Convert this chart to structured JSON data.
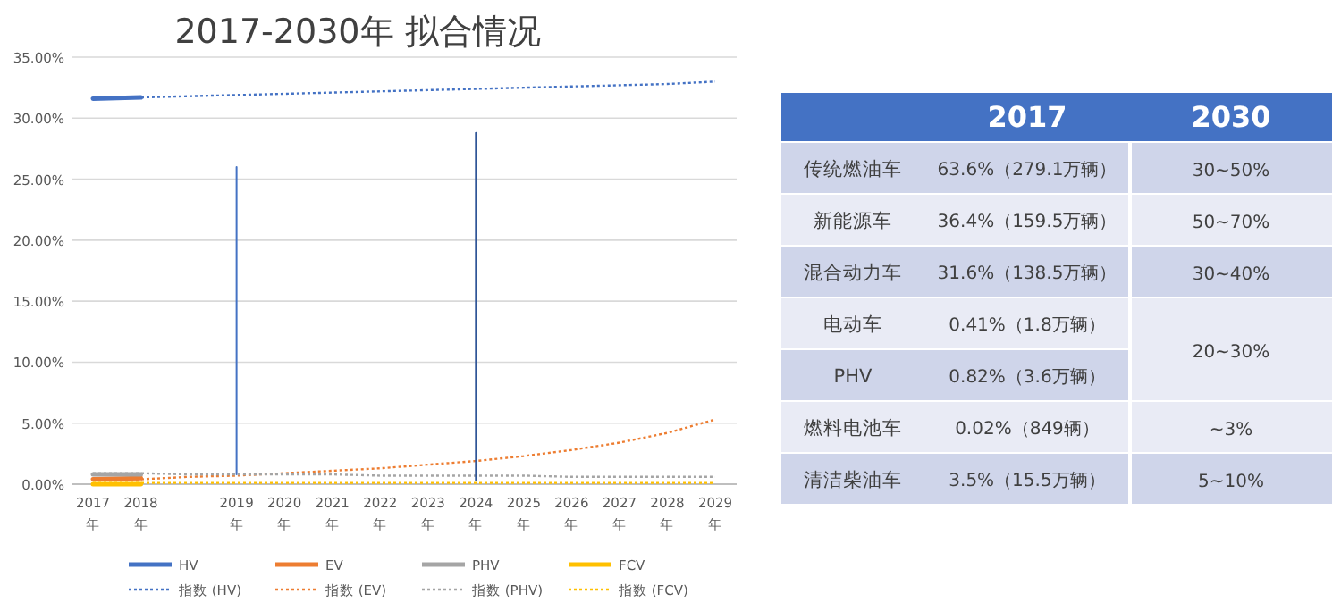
{
  "chart_data": [
    {
      "type": "line",
      "title": "2017-2030年 拟合情况",
      "categories": [
        "2017年",
        "2018年",
        null,
        "2019年",
        "2020年",
        "2021年",
        "2022年",
        "2023年",
        "2024年",
        "2025年",
        "2026年",
        "2027年",
        "2028年",
        "2029年"
      ],
      "ylim": [
        0,
        35
      ],
      "yticks": [
        {
          "value": 0,
          "label": "0.00%"
        },
        {
          "value": 5,
          "label": "5.00%"
        },
        {
          "value": 10,
          "label": "10.00%"
        },
        {
          "value": 15,
          "label": "15.00%"
        },
        {
          "value": 20,
          "label": "20.00%"
        },
        {
          "value": 25,
          "label": "25.00%"
        },
        {
          "value": 30,
          "label": "30.00%"
        },
        {
          "value": 35,
          "label": "35.00%"
        }
      ],
      "grid": "y",
      "legend": "bottom",
      "marker": "none",
      "series": [
        {
          "name": "HV",
          "color": "#4472c4",
          "values": [
            31.6,
            31.7,
            null,
            null,
            null,
            null,
            null,
            null,
            null,
            null,
            null,
            null,
            null,
            null
          ]
        },
        {
          "name": "EV",
          "color": "#ed7d31",
          "values": [
            0.4,
            0.5,
            null,
            null,
            null,
            null,
            null,
            null,
            null,
            null,
            null,
            null,
            null,
            null
          ]
        },
        {
          "name": "PHV",
          "color": "#a5a5a5",
          "values": [
            0.8,
            0.8,
            null,
            null,
            null,
            null,
            null,
            null,
            null,
            null,
            null,
            null,
            null,
            null
          ]
        },
        {
          "name": "FCV",
          "color": "#ffc000",
          "values": [
            0,
            0,
            null,
            null,
            null,
            null,
            null,
            null,
            null,
            null,
            null,
            null,
            null,
            null
          ]
        },
        {
          "name": "指数 (HV)",
          "color": "#4472c4",
          "line_style": "dotted",
          "values": [
            31.6,
            31.7,
            31.8,
            31.9,
            32.0,
            32.1,
            32.2,
            32.3,
            32.4,
            32.5,
            32.6,
            32.7,
            32.8,
            33.0
          ]
        },
        {
          "name": "指数 (EV)",
          "color": "#ed7d31",
          "line_style": "dotted",
          "values": [
            0.3,
            0.4,
            0.6,
            0.7,
            0.9,
            1.1,
            1.3,
            1.6,
            1.9,
            2.3,
            2.8,
            3.4,
            4.2,
            5.3
          ]
        },
        {
          "name": "指数 (PHV)",
          "color": "#a5a5a5",
          "line_style": "dotted",
          "values": [
            0.9,
            0.9,
            0.8,
            0.8,
            0.8,
            0.8,
            0.7,
            0.7,
            0.7,
            0.7,
            0.6,
            0.6,
            0.6,
            0.6
          ]
        },
        {
          "name": "指数 (FCV)",
          "color": "#ffc000",
          "line_style": "dotted",
          "values": [
            0.1,
            0.1,
            0.1,
            0.1,
            0.1,
            0.1,
            0.1,
            0.1,
            0.1,
            0.1,
            0.1,
            0.1,
            0.1,
            0.1
          ]
        },
        {
          "color": "#4472c4",
          "x": [
            "2019年",
            "2019年"
          ],
          "values": [
            0.8,
            26
          ]
        },
        {
          "color": "#2f5597",
          "x": [
            "2024年",
            "2024年"
          ],
          "values": [
            0.3,
            28.8
          ]
        }
      ]
    },
    {
      "type": "other",
      "categories": [
        null,
        "2017",
        "2030"
      ],
      "y_categories": [
        "传统燃油车",
        "新能源车",
        "混合动力车",
        "电动车",
        "PHV",
        "燃料电池车",
        "清洁柴油车"
      ],
      "cell_labels": [
        [
          "63.6%（279.1万辆）",
          "30~50%"
        ],
        [
          "36.4%（159.5万辆）",
          "50~70%"
        ],
        [
          "31.6%（138.5万辆）",
          "30~40%"
        ],
        [
          "0.41%（1.8万辆）",
          "20~30%"
        ],
        [
          "0.82%（3.6万辆）",
          null
        ],
        [
          "0.02%（849辆）",
          "~3%"
        ],
        [
          "3.5%（15.5万辆）",
          "5~10%"
        ]
      ]
    }
  ]
}
